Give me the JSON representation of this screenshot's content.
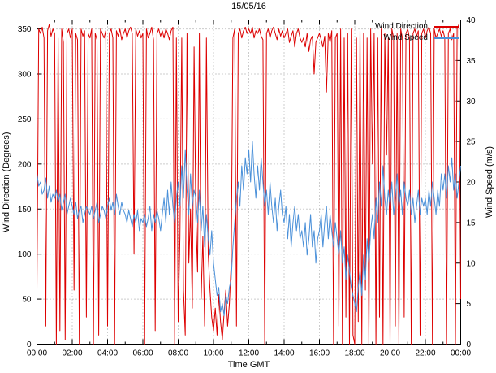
{
  "chart_data": {
    "type": "line",
    "title": "15/05/16",
    "xlabel": "Time GMT",
    "ylabel_left": "Wind Direction (Degrees)",
    "ylabel_right": "Wind Speed (m/s)",
    "grid": true,
    "x_range_hours": [
      0,
      24
    ],
    "x_tick_hours": [
      0,
      2,
      4,
      6,
      8,
      10,
      12,
      14,
      16,
      18,
      20,
      22,
      24
    ],
    "x_tick_labels": [
      "00:00",
      "02:00",
      "04:00",
      "06:00",
      "08:00",
      "10:00",
      "12:00",
      "14:00",
      "16:00",
      "18:00",
      "20:00",
      "22:00",
      "00:00"
    ],
    "x_minor_step_hours": 1,
    "y_left_range": [
      0,
      360
    ],
    "y_left_ticks": [
      0,
      50,
      100,
      150,
      200,
      250,
      300,
      350
    ],
    "y_right_range": [
      0,
      40
    ],
    "y_right_ticks": [
      0,
      5,
      10,
      15,
      20,
      25,
      30,
      35,
      40
    ],
    "legend": {
      "position": "top-right",
      "entries": [
        {
          "label": "Wind Direction",
          "color": "#dd0000",
          "axis": "left"
        },
        {
          "label": "Wind Speed",
          "color": "#4a90d9",
          "axis": "right"
        }
      ]
    },
    "x_start_hour": 0,
    "x_step_hours": 0.1,
    "series": [
      {
        "name": "Wind Direction",
        "axis": "left",
        "color": "#dd0000",
        "values": [
          60,
          350,
          345,
          352,
          340,
          20,
          348,
          355,
          342,
          350,
          345,
          0,
          340,
          15,
          350,
          335,
          5,
          345,
          350,
          340,
          350,
          60,
          345,
          338,
          0,
          350,
          342,
          348,
          30,
          345,
          340,
          350,
          0,
          345,
          338,
          10,
          350,
          345,
          340,
          348,
          20,
          345,
          350,
          340,
          0,
          348,
          342,
          350,
          338,
          345,
          350,
          340,
          348,
          352,
          345,
          100,
          350,
          342,
          348,
          340,
          345,
          0,
          350,
          340,
          345,
          352,
          338,
          15,
          345,
          350,
          342,
          348,
          340,
          350,
          345,
          338,
          348,
          352,
          0,
          340,
          25,
          120,
          340,
          60,
          10,
          345,
          90,
          150,
          40,
          330,
          140,
          80,
          345,
          50,
          120,
          20,
          340,
          100,
          60,
          30,
          15,
          40,
          10,
          55,
          25,
          5,
          35,
          60,
          20,
          45,
          90,
          340,
          350,
          20,
          345,
          350,
          340,
          348,
          352,
          345,
          350,
          345,
          352,
          340,
          348,
          345,
          350,
          342,
          338,
          0,
          345,
          350,
          340,
          348,
          352,
          345,
          338,
          350,
          342,
          348,
          340,
          345,
          350,
          335,
          342,
          348,
          330,
          345,
          350,
          340,
          335,
          340,
          330,
          345,
          325,
          338,
          342,
          300,
          335,
          340,
          345,
          338,
          330,
          342,
          280,
          345,
          335,
          348,
          0,
          340,
          345,
          20,
          350,
          0,
          340,
          30,
          345,
          0,
          350,
          10,
          0,
          340,
          25,
          350,
          0,
          345,
          60,
          340,
          0,
          350,
          200,
          345,
          0,
          340,
          30,
          350,
          0,
          345,
          210,
          340,
          0,
          350,
          340,
          20,
          345,
          0,
          350,
          340,
          30,
          345,
          350,
          340,
          0,
          345,
          350,
          342,
          348,
          10,
          345,
          350,
          340,
          348,
          352,
          345,
          0,
          350,
          340,
          345,
          350,
          342,
          348,
          340,
          0,
          345,
          350,
          338,
          345,
          0,
          350,
          355,
          50
        ]
      },
      {
        "name": "Wind Speed",
        "axis": "right",
        "color": "#4a90d9",
        "values": [
          21,
          19.5,
          20,
          18.5,
          19,
          20.5,
          18,
          19.5,
          17.5,
          18.5,
          18,
          19,
          17.5,
          18.5,
          16.5,
          17.5,
          18.5,
          16,
          17,
          18,
          17,
          16,
          17.5,
          15.5,
          16.5,
          17,
          15,
          16,
          17,
          16.5,
          16,
          17,
          15.5,
          16.5,
          17.5,
          15,
          16,
          17,
          16.5,
          15.5,
          17,
          18,
          16.5,
          17.5,
          16,
          18.5,
          17,
          16,
          17.5,
          16.5,
          16,
          15,
          16.5,
          15.5,
          14.5,
          16,
          15,
          16.5,
          14,
          15.5,
          15,
          16,
          14.5,
          15.5,
          17,
          14,
          16,
          15,
          16.5,
          15.5,
          14,
          16,
          18,
          15,
          19,
          16,
          20,
          17,
          15,
          18,
          20,
          17,
          22,
          18,
          24,
          19,
          16,
          21,
          17,
          19,
          18,
          15,
          19,
          14,
          17,
          12,
          16,
          13,
          11,
          14,
          10,
          8,
          6,
          7,
          4,
          5,
          3.5,
          6,
          5,
          7,
          8,
          12,
          15,
          18,
          20,
          17,
          22,
          19,
          23,
          21,
          24,
          20,
          25,
          21,
          18,
          22,
          19,
          23,
          20,
          17,
          19,
          16,
          20,
          17,
          15,
          18,
          14,
          17,
          19,
          16,
          15,
          17,
          13,
          16,
          12,
          15,
          17,
          14,
          16,
          13,
          14,
          12,
          15,
          11,
          13,
          16,
          12,
          14,
          10,
          13,
          14,
          16,
          12,
          15,
          17,
          13,
          16,
          14,
          12,
          15,
          13,
          11,
          14,
          10,
          12,
          8,
          11,
          9,
          7,
          6,
          5,
          4,
          7,
          9,
          6,
          11,
          8,
          13,
          10,
          14,
          16,
          13,
          18,
          15,
          20,
          17,
          22,
          18,
          16,
          19,
          17,
          20,
          16,
          18,
          21,
          17,
          19,
          16,
          20,
          18,
          17,
          19,
          16,
          18,
          15,
          17,
          19,
          16,
          18,
          17,
          18,
          16,
          19,
          17,
          20,
          18,
          16,
          19,
          17,
          21,
          19,
          21,
          18,
          22,
          20,
          23,
          19,
          21,
          18,
          20,
          22
        ]
      }
    ]
  }
}
